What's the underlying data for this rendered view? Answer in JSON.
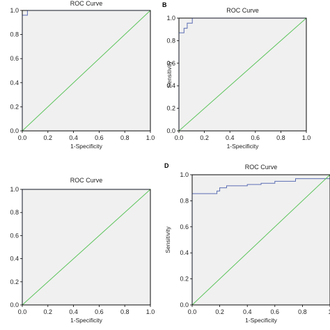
{
  "chart_data": [
    {
      "panel": "A",
      "panel_label": "",
      "type": "line",
      "title": "ROC Curve",
      "xlabel": "1-Specificity",
      "ylabel": "",
      "xlim": [
        0,
        1
      ],
      "ylim": [
        0,
        1
      ],
      "xticks": [
        "0.0",
        "0.2",
        "0.4",
        "0.6",
        "0.8",
        "1.0"
      ],
      "yticks": [
        "0.0",
        "0.2",
        "0.4",
        "0.6",
        "0.8",
        "1.0"
      ],
      "grid": false,
      "series": [
        {
          "name": "",
          "color": "#5b6db3",
          "x": [
            0,
            0,
            0.04,
            0.04,
            1.0
          ],
          "y": [
            0,
            0.96,
            0.96,
            1.0,
            1.0
          ]
        },
        {
          "name": "",
          "color": "#5cc45c",
          "x": [
            0,
            1
          ],
          "y": [
            0,
            1
          ]
        }
      ]
    },
    {
      "panel": "B",
      "panel_label": "B",
      "type": "line",
      "title": "ROC Curve",
      "xlabel": "1-Specificity",
      "ylabel": "Sensitivity",
      "xlim": [
        0,
        1
      ],
      "ylim": [
        0,
        1
      ],
      "xticks": [
        "0.0",
        "0.2",
        "0.4",
        "0.6",
        "0.8",
        "1.0"
      ],
      "yticks": [
        "0.0",
        "0.2",
        "0.4",
        "0.6",
        "0.8",
        "1.0"
      ],
      "grid": false,
      "series": [
        {
          "name": "",
          "color": "#5b6db3",
          "x": [
            0,
            0,
            0.04,
            0.04,
            0.065,
            0.065,
            0.105,
            0.105,
            1.0
          ],
          "y": [
            0,
            0.87,
            0.87,
            0.91,
            0.91,
            0.955,
            0.955,
            1.0,
            1.0
          ]
        },
        {
          "name": "",
          "color": "#5cc45c",
          "x": [
            0,
            1
          ],
          "y": [
            0,
            1
          ]
        }
      ]
    },
    {
      "panel": "C",
      "panel_label": "",
      "type": "line",
      "title": "ROC Curve",
      "xlabel": "1-Specificity",
      "ylabel": "",
      "xlim": [
        0,
        1
      ],
      "ylim": [
        0,
        1
      ],
      "xticks": [
        "0.0",
        "0.2",
        "0.4",
        "0.6",
        "0.8",
        "1.0"
      ],
      "yticks": [
        "0.0",
        "0.2",
        "0.4",
        "0.6",
        "0.8",
        "1.0"
      ],
      "grid": false,
      "series": [
        {
          "name": "",
          "color": "#5b6db3",
          "x": [
            0,
            0,
            1.0
          ],
          "y": [
            0,
            1.0,
            1.0
          ]
        },
        {
          "name": "",
          "color": "#5cc45c",
          "x": [
            0,
            1
          ],
          "y": [
            0,
            1
          ]
        }
      ]
    },
    {
      "panel": "D",
      "panel_label": "D",
      "type": "line",
      "title": "ROC Curve",
      "xlabel": "1-Specificity",
      "ylabel": "Sensitivity",
      "xlim": [
        0,
        1
      ],
      "ylim": [
        0,
        1
      ],
      "xticks": [
        "0.0",
        "0.2",
        "0.4",
        "0.6",
        "0.8",
        "1"
      ],
      "yticks": [
        "0.0",
        "0.2",
        "0.4",
        "0.6",
        "0.8",
        "1.0"
      ],
      "grid": false,
      "series": [
        {
          "name": "",
          "color": "#5b6db3",
          "x": [
            0,
            0,
            0.18,
            0.18,
            0.2,
            0.2,
            0.25,
            0.25,
            0.4,
            0.4,
            0.5,
            0.5,
            0.6,
            0.6,
            0.75,
            0.75,
            1.0
          ],
          "y": [
            0,
            0.855,
            0.855,
            0.875,
            0.875,
            0.9,
            0.9,
            0.915,
            0.915,
            0.925,
            0.925,
            0.935,
            0.935,
            0.95,
            0.95,
            0.97,
            0.97
          ]
        },
        {
          "name": "",
          "color": "#5cc45c",
          "x": [
            0,
            1
          ],
          "y": [
            0,
            1
          ]
        }
      ]
    }
  ]
}
